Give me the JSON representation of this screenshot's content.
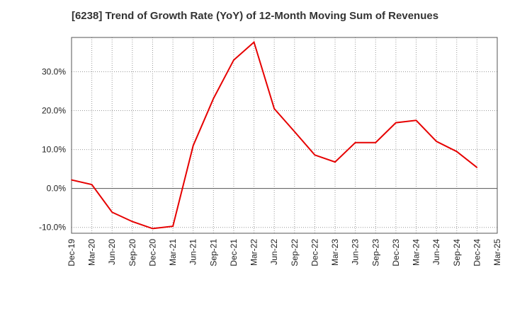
{
  "title": "[6238]  Trend of Growth Rate (YoY) of 12-Month Moving Sum of Revenues",
  "colors": {
    "line": "#e60000",
    "grid": "#999999",
    "zero_line": "#555555",
    "frame": "#555555",
    "plot_bg": "#ffffff"
  },
  "chart_data": {
    "type": "line",
    "title": "[6238]  Trend of Growth Rate (YoY) of 12-Month Moving Sum of Revenues",
    "xlabel": "",
    "ylabel": "",
    "x_tick_labels": [
      "Dec-19",
      "Mar-20",
      "Jun-20",
      "Sep-20",
      "Dec-20",
      "Mar-21",
      "Jun-21",
      "Sep-21",
      "Dec-21",
      "Mar-22",
      "Jun-22",
      "Sep-22",
      "Dec-22",
      "Mar-23",
      "Jun-23",
      "Sep-23",
      "Dec-23",
      "Mar-24",
      "Jun-24",
      "Sep-24",
      "Dec-24",
      "Mar-25"
    ],
    "y_ticks": [
      -10,
      0,
      10,
      20,
      30
    ],
    "y_tick_labels": [
      "-10.0%",
      "0.0%",
      "10.0%",
      "20.0%",
      "30.0%"
    ],
    "ylim": [
      -11.5,
      38.8
    ],
    "grid": true,
    "grid_style": "dotted",
    "series": [
      {
        "x": [
          "Dec-19",
          "Mar-20",
          "Jun-20",
          "Sep-20",
          "Dec-20",
          "Mar-21",
          "Jun-21",
          "Sep-21",
          "Dec-21",
          "Mar-22",
          "Jun-22",
          "Sep-22",
          "Dec-22",
          "Mar-23",
          "Jun-23",
          "Sep-23",
          "Dec-23",
          "Mar-24",
          "Jun-24",
          "Sep-24",
          "Dec-24"
        ],
        "values": [
          2.2,
          1.0,
          -6.1,
          -8.5,
          -10.3,
          -9.7,
          11.0,
          23.1,
          33.0,
          37.6,
          20.5,
          14.6,
          8.6,
          6.8,
          11.8,
          11.8,
          16.9,
          17.5,
          12.1,
          9.5,
          5.4
        ]
      }
    ]
  }
}
